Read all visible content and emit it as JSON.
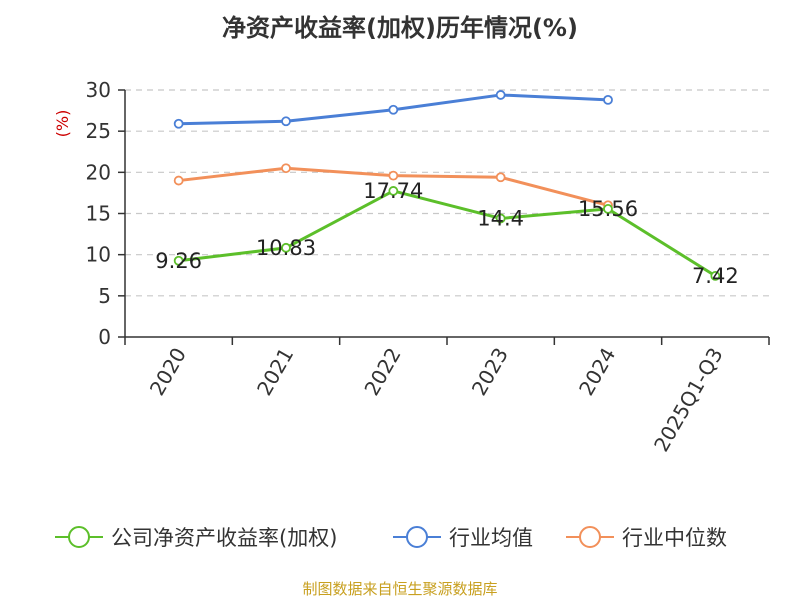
{
  "chart_data": {
    "type": "line",
    "title": "净资产收益率(加权)历年情况(%)",
    "ylabel": "(%)",
    "xlabel": "",
    "ylim": [
      0,
      30
    ],
    "yticks": [
      0,
      5,
      10,
      15,
      20,
      25,
      30
    ],
    "grid": true,
    "legend_position": "bottom",
    "categories": [
      "2020",
      "2021",
      "2022",
      "2023",
      "2024",
      "2025Q1-Q3"
    ],
    "series": [
      {
        "name": "公司净资产收益率(加权)",
        "color": "#5cbf2a",
        "values": [
          9.26,
          10.83,
          17.74,
          14.4,
          15.56,
          7.42
        ],
        "labels": [
          "9.26",
          "10.83",
          "17.74",
          "14.4",
          "15.56",
          "7.42"
        ]
      },
      {
        "name": "行业均值",
        "color": "#4a7fd6",
        "values": [
          25.9,
          26.2,
          27.6,
          29.4,
          28.8,
          null
        ]
      },
      {
        "name": "行业中位数",
        "color": "#f2905a",
        "values": [
          19.0,
          20.5,
          19.6,
          19.4,
          16.0,
          null
        ]
      }
    ]
  },
  "source": "制图数据来自恒生聚源数据库"
}
